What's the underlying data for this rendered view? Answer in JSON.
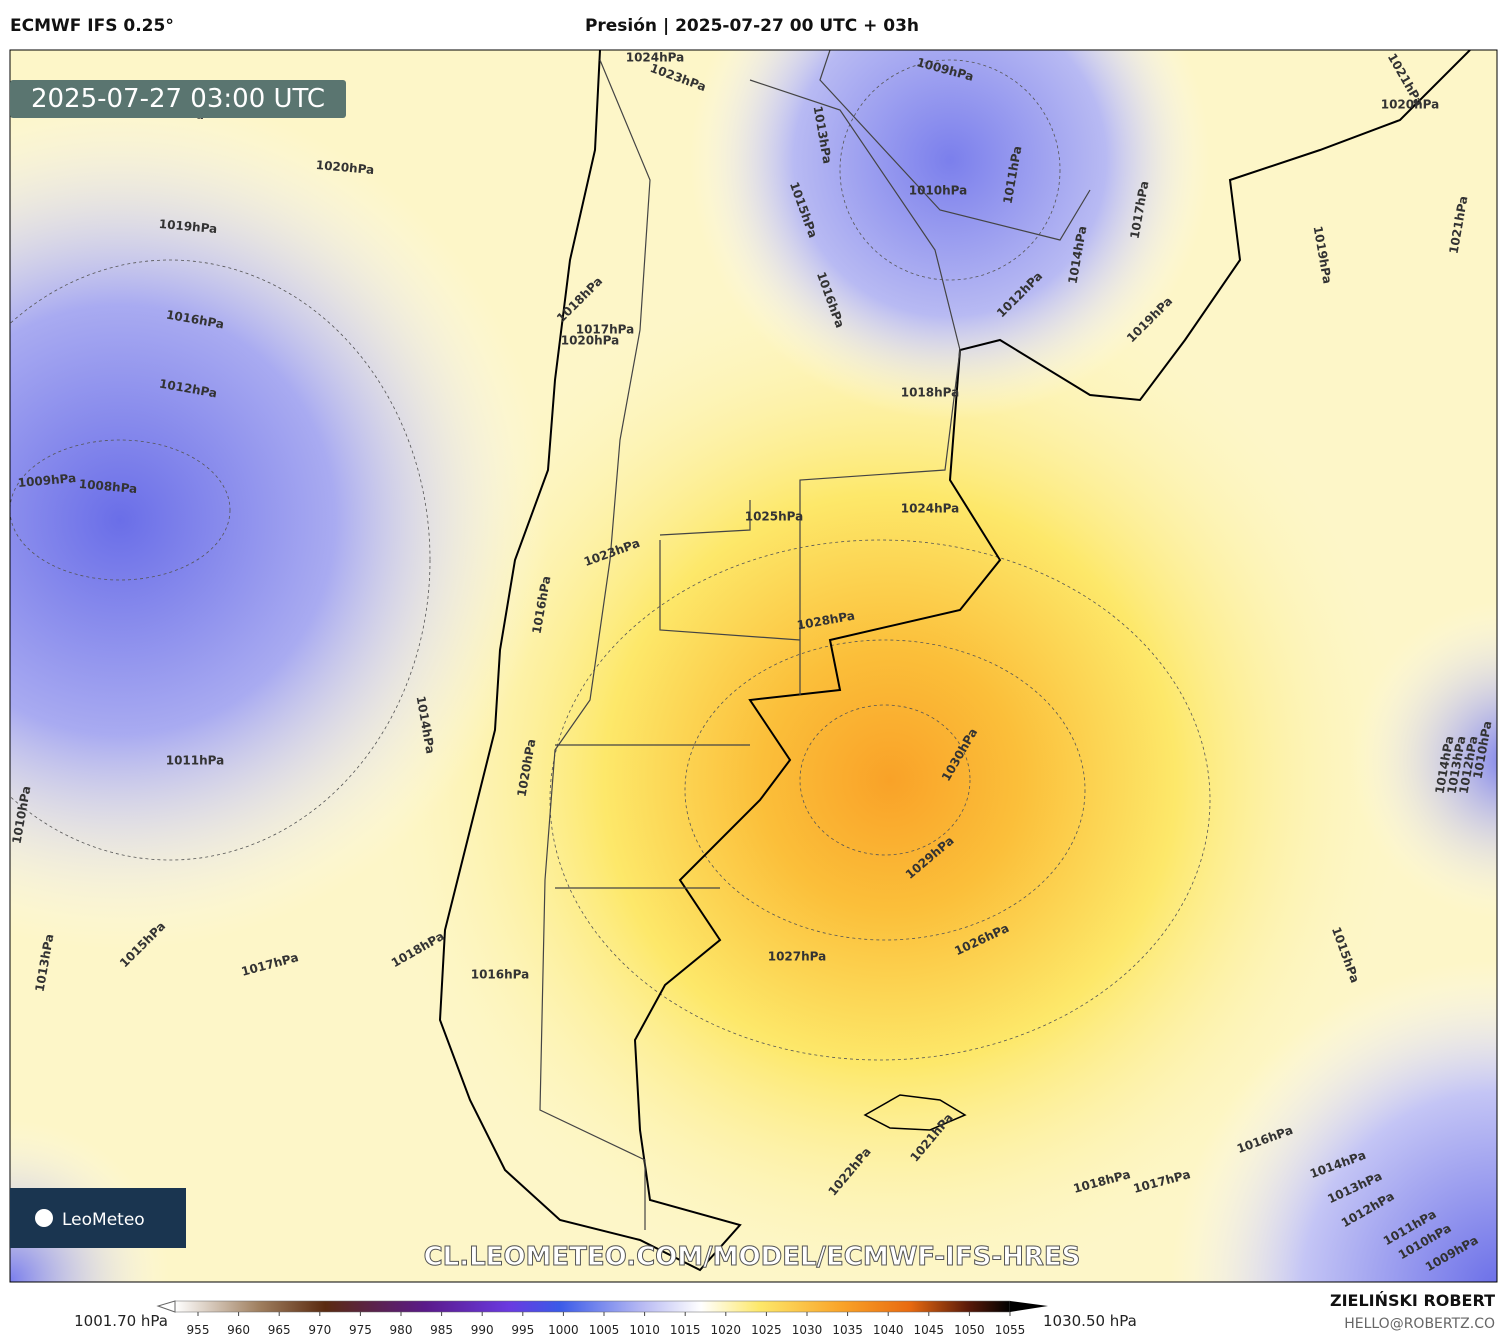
{
  "header": {
    "model": "ECMWF IFS 0.25°",
    "title": "Presión | 2025-07-27 00 UTC + 03h"
  },
  "map": {
    "timestamp": "2025-07-27 03:00 UTC",
    "watermark": "CL.LEOMETEO.COM/MODEL/ECMWF-IFS-HRES",
    "logo": "LeoMeteo",
    "isobar_labels": [
      "1020hPa",
      "1020hPa",
      "1019hPa",
      "1016hPa",
      "1012hPa",
      "1009hPa",
      "1008hPa",
      "1011hPa",
      "1014hPa",
      "1010hPa",
      "1013hPa",
      "1015hPa",
      "1017hPa",
      "1018hPa",
      "1016hPa",
      "1020hPa",
      "1016hPa",
      "1023hPa",
      "1025hPa",
      "1024hPa",
      "1028hPa",
      "1030hPa",
      "1029hPa",
      "1027hPa",
      "1026hPa",
      "1022hPa",
      "1021hPa",
      "1018hPa",
      "1017hPa",
      "1016hPa",
      "1014hPa",
      "1013hPa",
      "1012hPa",
      "1011hPa",
      "1010hPa",
      "1009hPa",
      "1015hPa",
      "1018hPa",
      "1019hPa",
      "1016hPa",
      "1015hPa",
      "1013hPa",
      "1010hPa",
      "1009hPa",
      "1011hPa",
      "1012hPa",
      "1014hPa",
      "1017hPa",
      "1019hPa",
      "1021hPa",
      "1020hPa",
      "1021hPa",
      "1018hPa",
      "1017hPa",
      "1020hPa",
      "1024hPa",
      "1023hPa",
      "1014hPa",
      "1013hPa",
      "1012hPa",
      "1010hPa"
    ]
  },
  "colorbar": {
    "min_label": "1001.70 hPa",
    "max_label": "1030.50 hPa",
    "ticks": [
      "955",
      "960",
      "965",
      "970",
      "975",
      "980",
      "985",
      "990",
      "995",
      "1000",
      "1005",
      "1010",
      "1015",
      "1020",
      "1025",
      "1030",
      "1035",
      "1040",
      "1045",
      "1050",
      "1055"
    ]
  },
  "footer": {
    "author": "ZIELIŃSKI ROBERT",
    "contact": "HELLO@ROBERTZ.CO"
  }
}
